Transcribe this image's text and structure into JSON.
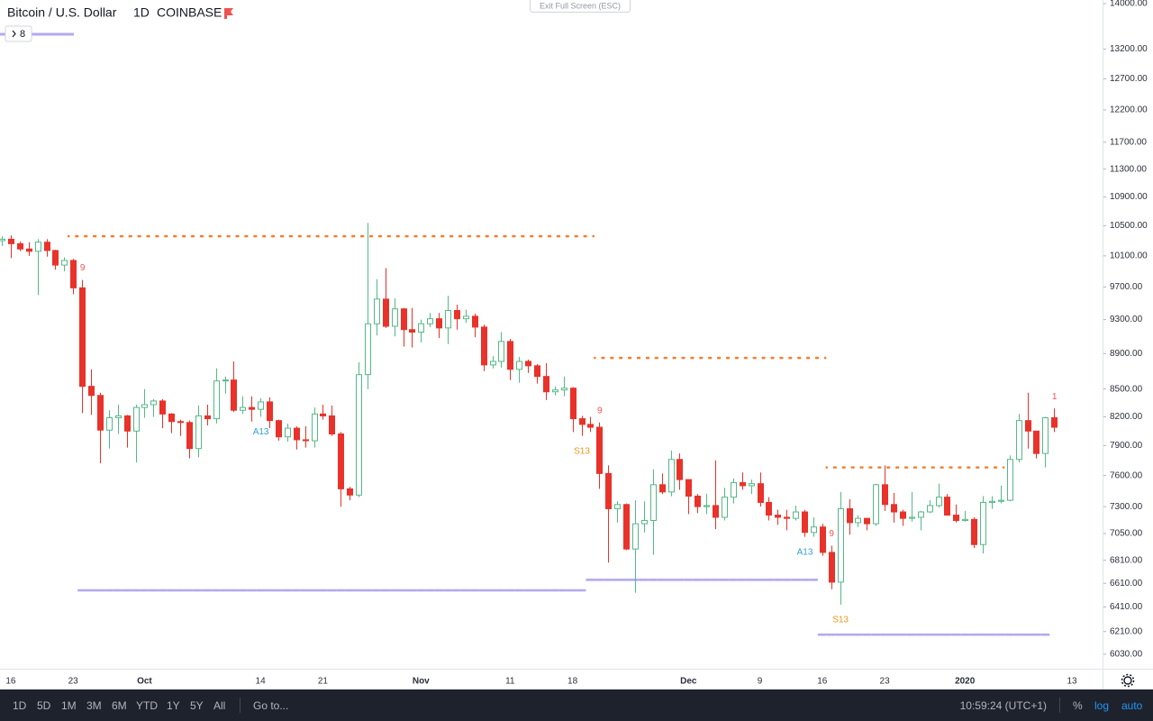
{
  "chart_data": {
    "type": "candlestick",
    "symbol": "Bitcoin / U.S. Dollar",
    "interval": "1D",
    "exchange": "COINBASE",
    "indicators_button": "8",
    "log_scale": true,
    "grid": false,
    "up_color": "#53b987",
    "down_color": "#e8322a",
    "ylim": [
      5918,
      14066
    ],
    "yticks": [
      {
        "value": 6030,
        "label": "6030.00"
      },
      {
        "value": 6210,
        "label": "6210.00"
      },
      {
        "value": 6410,
        "label": "6410.00"
      },
      {
        "value": 6610,
        "label": "6610.00"
      },
      {
        "value": 6810,
        "label": "6810.00"
      },
      {
        "value": 7050,
        "label": "7050.00"
      },
      {
        "value": 7300,
        "label": "7300.00"
      },
      {
        "value": 7600,
        "label": "7600.00"
      },
      {
        "value": 7900,
        "label": "7900.00"
      },
      {
        "value": 8200,
        "label": "8200.00"
      },
      {
        "value": 8500,
        "label": "8500.00"
      },
      {
        "value": 8900,
        "label": "8900.00"
      },
      {
        "value": 9300,
        "label": "9300.00"
      },
      {
        "value": 9700,
        "label": "9700.00"
      },
      {
        "value": 10100,
        "label": "10100.00"
      },
      {
        "value": 10500,
        "label": "10500.00"
      },
      {
        "value": 10900,
        "label": "10900.00"
      },
      {
        "value": 11300,
        "label": "11300.00"
      },
      {
        "value": 11700,
        "label": "11700.00"
      },
      {
        "value": 12200,
        "label": "12200.00"
      },
      {
        "value": 12700,
        "label": "12700.00"
      },
      {
        "value": 13200,
        "label": "13200.00"
      },
      {
        "value": 14000,
        "label": "14000.00"
      }
    ],
    "categories": [
      null,
      "16",
      null,
      null,
      null,
      null,
      null,
      null,
      "23",
      null,
      null,
      null,
      null,
      null,
      null,
      null,
      "Oct",
      null,
      null,
      null,
      null,
      null,
      null,
      null,
      null,
      null,
      null,
      null,
      null,
      "14",
      null,
      null,
      null,
      null,
      null,
      null,
      "21",
      null,
      null,
      null,
      null,
      null,
      null,
      null,
      null,
      null,
      null,
      "Nov",
      null,
      null,
      null,
      null,
      null,
      null,
      null,
      null,
      null,
      "11",
      null,
      null,
      null,
      null,
      null,
      null,
      "18",
      null,
      null,
      null,
      null,
      null,
      null,
      null,
      null,
      null,
      null,
      null,
      null,
      "Dec",
      null,
      null,
      null,
      null,
      null,
      null,
      null,
      "9",
      null,
      null,
      null,
      null,
      null,
      null,
      "16",
      null,
      null,
      null,
      null,
      null,
      null,
      "23",
      null,
      null,
      null,
      null,
      null,
      null,
      null,
      null,
      "2020",
      null,
      null,
      null,
      null,
      null,
      null,
      null,
      null,
      null,
      null,
      null,
      "13"
    ],
    "open": [
      10300,
      10320,
      10260,
      10190,
      10160,
      10280,
      10170,
      9980,
      10040,
      9690,
      8530,
      8430,
      8060,
      8190,
      8210,
      8050,
      8300,
      8330,
      8370,
      8230,
      8150,
      8140,
      7870,
      8210,
      8180,
      8590,
      8600,
      8270,
      8300,
      8280,
      8360,
      8160,
      7990,
      8080,
      7960,
      7950,
      8230,
      8210,
      8020,
      7470,
      7410,
      8660,
      9250,
      9550,
      9220,
      9430,
      9180,
      9150,
      9250,
      9310,
      9200,
      9410,
      9310,
      9340,
      9210,
      8770,
      8810,
      9040,
      8720,
      8810,
      8760,
      8640,
      8470,
      8490,
      8510,
      8180,
      8120,
      8090,
      7620,
      7280,
      7320,
      6910,
      7140,
      7170,
      7510,
      7440,
      7760,
      7560,
      7400,
      7300,
      7310,
      7200,
      7390,
      7530,
      7500,
      7520,
      7340,
      7220,
      7200,
      7190,
      7250,
      7060,
      7110,
      6880,
      6620,
      7280,
      7150,
      7190,
      7140,
      7510,
      7320,
      7250,
      7190,
      7200,
      7250,
      7310,
      7390,
      7220,
      7170,
      7180,
      6950,
      7340,
      7350,
      7360,
      7760,
      8160,
      8050,
      7820,
      8190,
      null,
      null
    ],
    "high": [
      10360,
      10370,
      10290,
      10280,
      10320,
      10320,
      10180,
      10080,
      10060,
      9790,
      8720,
      8460,
      8270,
      8330,
      8220,
      8330,
      8500,
      8390,
      8390,
      8240,
      8170,
      8160,
      8320,
      8330,
      8730,
      8640,
      8810,
      8420,
      8420,
      8400,
      8410,
      8170,
      8130,
      8100,
      8100,
      8300,
      8330,
      8320,
      8040,
      7490,
      8800,
      10540,
      9800,
      9940,
      9560,
      9440,
      9440,
      9300,
      9380,
      9380,
      9590,
      9480,
      9420,
      9370,
      9240,
      8870,
      9150,
      9070,
      8860,
      8830,
      8780,
      8790,
      8530,
      8640,
      8520,
      8210,
      8200,
      8140,
      7700,
      7350,
      7330,
      7360,
      7350,
      7660,
      7620,
      7850,
      7820,
      7560,
      7420,
      7420,
      7750,
      7480,
      7570,
      7630,
      7560,
      7630,
      7390,
      7270,
      7270,
      7310,
      7270,
      7200,
      7140,
      6940,
      7440,
      7370,
      7220,
      7190,
      7520,
      7700,
      7430,
      7270,
      7440,
      7260,
      7360,
      7520,
      7420,
      7320,
      7260,
      7200,
      7400,
      7400,
      7500,
      7800,
      8230,
      8460,
      8050,
      8200,
      8290,
      null,
      null
    ],
    "low": [
      10230,
      10070,
      10160,
      10100,
      9600,
      10090,
      9920,
      9900,
      9610,
      8240,
      8220,
      7720,
      7870,
      8020,
      7880,
      7730,
      8190,
      8200,
      8080,
      8030,
      8000,
      7770,
      7780,
      8110,
      8130,
      8450,
      8250,
      8230,
      8150,
      8200,
      8080,
      7950,
      7940,
      7860,
      7880,
      7880,
      8170,
      8000,
      7300,
      7360,
      7390,
      8500,
      9110,
      9200,
      9100,
      8980,
      8970,
      9030,
      9210,
      9080,
      9010,
      9180,
      9260,
      9090,
      8700,
      8730,
      8740,
      8600,
      8570,
      8680,
      8560,
      8380,
      8430,
      8420,
      8040,
      8000,
      8040,
      7470,
      6790,
      7150,
      6900,
      6530,
      7060,
      6860,
      7420,
      7400,
      7460,
      7230,
      7240,
      7230,
      7090,
      7170,
      7330,
      7460,
      7420,
      7300,
      7170,
      7130,
      7080,
      7170,
      7020,
      7020,
      6850,
      6560,
      6430,
      7040,
      7110,
      7080,
      7120,
      7260,
      7150,
      7120,
      7160,
      7080,
      7240,
      7290,
      7220,
      7150,
      7160,
      6920,
      6870,
      7280,
      7330,
      7350,
      7730,
      7870,
      7770,
      7680,
      8040,
      null,
      null
    ],
    "close": [
      10320,
      10260,
      10190,
      10160,
      10280,
      10170,
      9980,
      10040,
      9690,
      8530,
      8430,
      8060,
      8190,
      8210,
      8050,
      8300,
      8330,
      8370,
      8230,
      8150,
      8140,
      7870,
      8210,
      8180,
      8590,
      8600,
      8270,
      8300,
      8280,
      8360,
      8160,
      7990,
      8080,
      7960,
      7950,
      8230,
      8210,
      8020,
      7470,
      7410,
      8660,
      9250,
      9550,
      9220,
      9430,
      9180,
      9150,
      9250,
      9310,
      9200,
      9410,
      9310,
      9340,
      9210,
      8770,
      8810,
      9040,
      8720,
      8810,
      8760,
      8640,
      8470,
      8490,
      8510,
      8180,
      8120,
      8090,
      7620,
      7280,
      7320,
      6910,
      7140,
      7170,
      7510,
      7440,
      7760,
      7560,
      7400,
      7300,
      7310,
      7200,
      7390,
      7530,
      7500,
      7520,
      7340,
      7220,
      7200,
      7190,
      7250,
      7060,
      7110,
      6880,
      6620,
      7280,
      7150,
      7190,
      7140,
      7510,
      7320,
      7250,
      7190,
      7200,
      7250,
      7310,
      7390,
      7220,
      7170,
      7180,
      6950,
      7340,
      7350,
      7360,
      7760,
      8160,
      8050,
      7820,
      8190,
      8090,
      null,
      null
    ],
    "overlays": [
      {
        "style": "dotted",
        "color": "#f57c2a",
        "values": [
          null,
          null,
          null,
          null,
          null,
          null,
          null,
          null,
          10360,
          10360,
          10360,
          10360,
          10360,
          10360,
          10360,
          10360,
          10360,
          10360,
          10360,
          10360,
          10360,
          10360,
          10360,
          10360,
          10360,
          10360,
          10360,
          10360,
          10360,
          10360,
          10360,
          10360,
          10360,
          10360,
          10360,
          10360,
          10360,
          10360,
          10360,
          10360,
          10360,
          10360,
          10360,
          10360,
          10360,
          10360,
          10360,
          10360,
          10360,
          10360,
          10360,
          10360,
          10360,
          10360,
          10360,
          10360,
          10360,
          10360,
          10360,
          10360,
          10360,
          10360,
          10360,
          10360,
          10360,
          10360,
          10360,
          8850,
          8850,
          8850,
          8850,
          8850,
          8850,
          8850,
          8850,
          8850,
          8850,
          8850,
          8850,
          8850,
          8850,
          8850,
          8850,
          8850,
          8850,
          8850,
          8850,
          8850,
          8850,
          8850,
          8850,
          8850,
          8850,
          7680,
          7680,
          7680,
          7680,
          7680,
          7680,
          7680,
          7680,
          7680,
          7680,
          7680,
          7680,
          7680,
          7680,
          7680,
          7680,
          7680,
          7680,
          7680,
          7680,
          null,
          null,
          null,
          null,
          null,
          null,
          null,
          null
        ]
      },
      {
        "style": "solid",
        "color": "#b4a9f0",
        "values": [
          null,
          null,
          null,
          null,
          null,
          null,
          null,
          null,
          null,
          6550,
          6550,
          6550,
          6550,
          6550,
          6550,
          6550,
          6550,
          6550,
          6550,
          6550,
          6550,
          6550,
          6550,
          6550,
          6550,
          6550,
          6550,
          6550,
          6550,
          6550,
          6550,
          6550,
          6550,
          6550,
          6550,
          6550,
          6550,
          6550,
          6550,
          6550,
          6550,
          6550,
          6550,
          6550,
          6550,
          6550,
          6550,
          6550,
          6550,
          6550,
          6550,
          6550,
          6550,
          6550,
          6550,
          6550,
          6550,
          6550,
          6550,
          6550,
          6550,
          6550,
          6550,
          6550,
          6550,
          6550,
          6640,
          6640,
          6640,
          6640,
          6640,
          6640,
          6640,
          6640,
          6640,
          6640,
          6640,
          6640,
          6640,
          6640,
          6640,
          6640,
          6640,
          6640,
          6640,
          6640,
          6640,
          6640,
          6640,
          6640,
          6640,
          6640,
          6185,
          6185,
          6185,
          6185,
          6185,
          6185,
          6185,
          6185,
          6185,
          6185,
          6185,
          6185,
          6185,
          6185,
          6185,
          6185,
          6185,
          6185,
          6185,
          6185,
          6185,
          6185,
          6185,
          6185,
          6185,
          6185,
          null,
          null
        ]
      }
    ],
    "labels_above": [
      null,
      null,
      null,
      null,
      null,
      null,
      null,
      null,
      null,
      {
        "text": "9",
        "color": "#ef5350"
      },
      null,
      null,
      null,
      null,
      null,
      null,
      null,
      null,
      null,
      null,
      null,
      null,
      null,
      null,
      null,
      null,
      null,
      null,
      null,
      null,
      null,
      null,
      null,
      null,
      null,
      null,
      null,
      null,
      null,
      null,
      null,
      null,
      null,
      null,
      null,
      null,
      null,
      null,
      null,
      null,
      null,
      null,
      null,
      null,
      null,
      null,
      null,
      null,
      null,
      null,
      null,
      null,
      null,
      null,
      null,
      null,
      null,
      {
        "text": "9",
        "color": "#ef5350"
      },
      null,
      null,
      null,
      null,
      null,
      null,
      null,
      null,
      null,
      null,
      null,
      null,
      null,
      null,
      null,
      null,
      null,
      null,
      null,
      null,
      null,
      null,
      null,
      null,
      null,
      {
        "text": "9",
        "color": "#ef5350"
      },
      null,
      null,
      null,
      null,
      null,
      null,
      null,
      null,
      null,
      null,
      null,
      null,
      null,
      null,
      null,
      null,
      null,
      null,
      null,
      null,
      null,
      null,
      null,
      null,
      {
        "text": "1",
        "color": "#ef5350"
      },
      null,
      null
    ],
    "labels_below": [
      null,
      null,
      null,
      null,
      null,
      null,
      null,
      null,
      null,
      null,
      null,
      null,
      null,
      null,
      null,
      null,
      null,
      null,
      null,
      null,
      null,
      null,
      null,
      null,
      null,
      null,
      null,
      null,
      null,
      {
        "text": "A13",
        "color": "#2f9fd0"
      },
      null,
      null,
      null,
      null,
      null,
      null,
      null,
      null,
      null,
      null,
      null,
      null,
      null,
      null,
      null,
      null,
      null,
      null,
      null,
      null,
      null,
      null,
      null,
      null,
      null,
      null,
      null,
      null,
      null,
      null,
      null,
      null,
      null,
      null,
      null,
      {
        "text": "S13",
        "color": "#e8971c"
      },
      null,
      null,
      null,
      null,
      null,
      null,
      null,
      null,
      null,
      null,
      null,
      null,
      null,
      null,
      null,
      null,
      null,
      null,
      null,
      null,
      null,
      null,
      null,
      null,
      {
        "text": "A13",
        "color": "#2f9fd0"
      },
      null,
      null,
      null,
      {
        "text": "S13",
        "color": "#e8971c"
      },
      null,
      null,
      null,
      null,
      null,
      null,
      null,
      null,
      null,
      null,
      null,
      null,
      null,
      null,
      null,
      null,
      null,
      null,
      null,
      null,
      null,
      null,
      null,
      null,
      null,
      null
    ]
  },
  "ui": {
    "exit_fullscreen": "Exit Full Screen (ESC)",
    "ranges": [
      "1D",
      "5D",
      "1M",
      "3M",
      "6M",
      "YTD",
      "1Y",
      "5Y",
      "All"
    ],
    "goto": "Go to...",
    "clock": "10:59:24 (UTC+1)",
    "percent": "%",
    "log": "log",
    "auto": "auto"
  }
}
